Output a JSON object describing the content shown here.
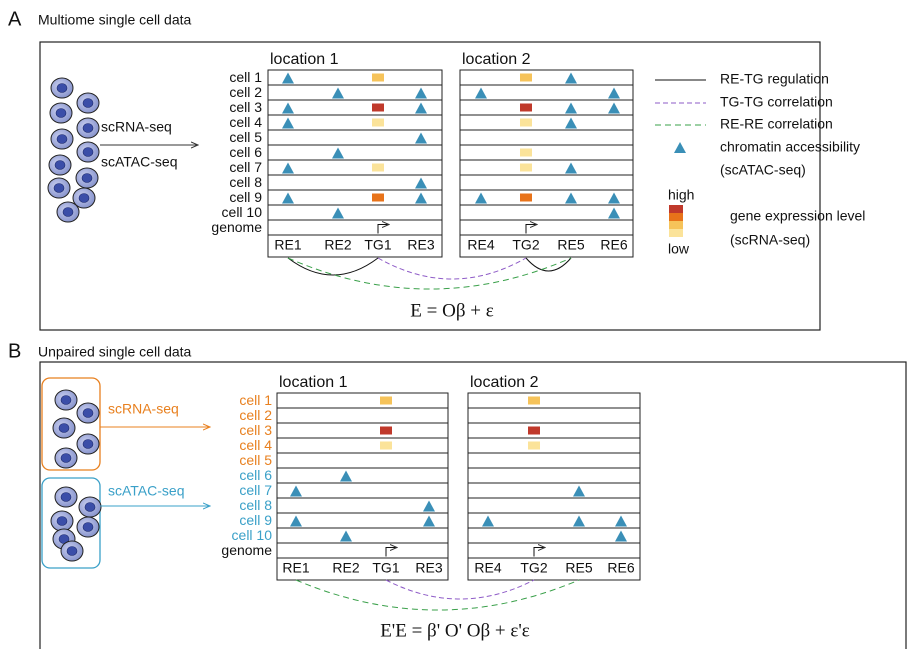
{
  "panel_a": {
    "letter": "A",
    "title": "Multiome single cell data",
    "assays": [
      "scRNA-seq",
      "scATAC-seq"
    ],
    "cells": [
      "cell 1",
      "cell 2",
      "cell 3",
      "cell 4",
      "cell 5",
      "cell 6",
      "cell 7",
      "cell 8",
      "cell 9",
      "cell 10"
    ],
    "genome": "genome",
    "location_1": "location 1",
    "location_2": "location 2",
    "elements_1": [
      "RE1",
      "RE2",
      "TG1",
      "RE3"
    ],
    "elements_2": [
      "RE4",
      "TG2",
      "RE5",
      "RE6"
    ],
    "equation": "E = Oβ + ε"
  },
  "panel_b": {
    "letter": "B",
    "title": "Unpaired single cell data",
    "assays": [
      "scRNA-seq",
      "scATAC-seq"
    ],
    "cells": [
      "cell 1",
      "cell 2",
      "cell 3",
      "cell 4",
      "cell 5",
      "cell 6",
      "cell 7",
      "cell 8",
      "cell 9",
      "cell 10"
    ],
    "genome": "genome",
    "location_1": "location 1",
    "location_2": "location 2",
    "elements_1": [
      "RE1",
      "RE2",
      "TG1",
      "RE3"
    ],
    "elements_2": [
      "RE4",
      "TG2",
      "RE5",
      "RE6"
    ],
    "equation": "E'E = β' O' Oβ + ε'ε"
  },
  "legend": {
    "regulation": "RE-TG regulation",
    "tg_correlation": "TG-TG correlation",
    "re_correlation": "RE-RE correlation",
    "accessibility": [
      "chromatin accessibility",
      "(scATAC-seq)"
    ],
    "high": "high",
    "low": "low",
    "expression": [
      "gene expression level",
      "(scRNA-seq)"
    ]
  }
}
